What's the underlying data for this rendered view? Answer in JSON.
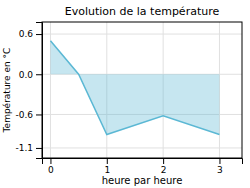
{
  "chart_data": {
    "type": "area",
    "title": "Evolution de la température",
    "xlabel": "heure par heure",
    "ylabel": "Température en °C",
    "x": [
      0,
      0.5,
      1,
      2,
      3
    ],
    "values": [
      0.5,
      0.0,
      -0.9,
      -0.62,
      -0.9
    ],
    "color": "#5bb8d4",
    "xlim": [
      -0.15,
      3.4
    ],
    "ylim": [
      -1.25,
      0.78
    ],
    "xticks": [
      0,
      1,
      2,
      3
    ],
    "yticks": [
      -1.1,
      -0.6,
      {
        "value": 0.0,
        "label": "0.0"
      },
      0.6
    ],
    "grid": true
  }
}
